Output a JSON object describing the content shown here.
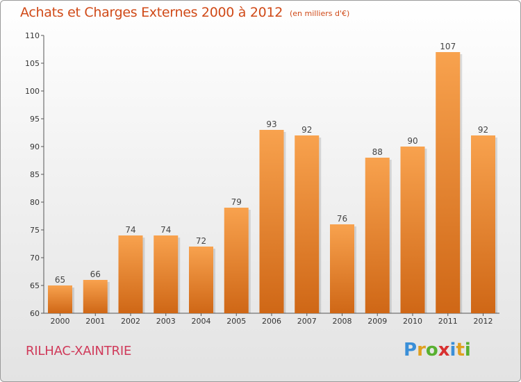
{
  "title": "Achats et Charges Externes 2000 à 2012",
  "subtitle": "(en milliers d'€)",
  "commune": "RILHAC-XAINTRIE",
  "logo": {
    "letters": [
      "P",
      "r",
      "o",
      "x",
      "i",
      "t",
      "i"
    ],
    "colors": [
      "#3a8fd8",
      "#e0a020",
      "#58b030",
      "#d83030",
      "#3a8fd8",
      "#e0a020",
      "#58b030"
    ]
  },
  "colors": {
    "bar_top": "#f8a24e",
    "bar_bottom": "#cf6716",
    "title": "#d04a18",
    "commune": "#d03a5a"
  },
  "chart_data": {
    "type": "bar",
    "categories": [
      "2000",
      "2001",
      "2002",
      "2003",
      "2004",
      "2005",
      "2006",
      "2007",
      "2008",
      "2009",
      "2010",
      "2011",
      "2012"
    ],
    "values": [
      65,
      66,
      74,
      74,
      72,
      79,
      93,
      92,
      76,
      88,
      90,
      107,
      92
    ],
    "data_labels": [
      "65",
      "66",
      "74",
      "74",
      "72",
      "79",
      "93",
      "92",
      "76",
      "88",
      "90",
      "107",
      "92"
    ],
    "yticks": [
      "60",
      "65",
      "70",
      "75",
      "80",
      "85",
      "90",
      "95",
      "100",
      "105",
      "110"
    ],
    "ylim": [
      60,
      110
    ],
    "grid": false,
    "xlabel": "",
    "ylabel": ""
  }
}
